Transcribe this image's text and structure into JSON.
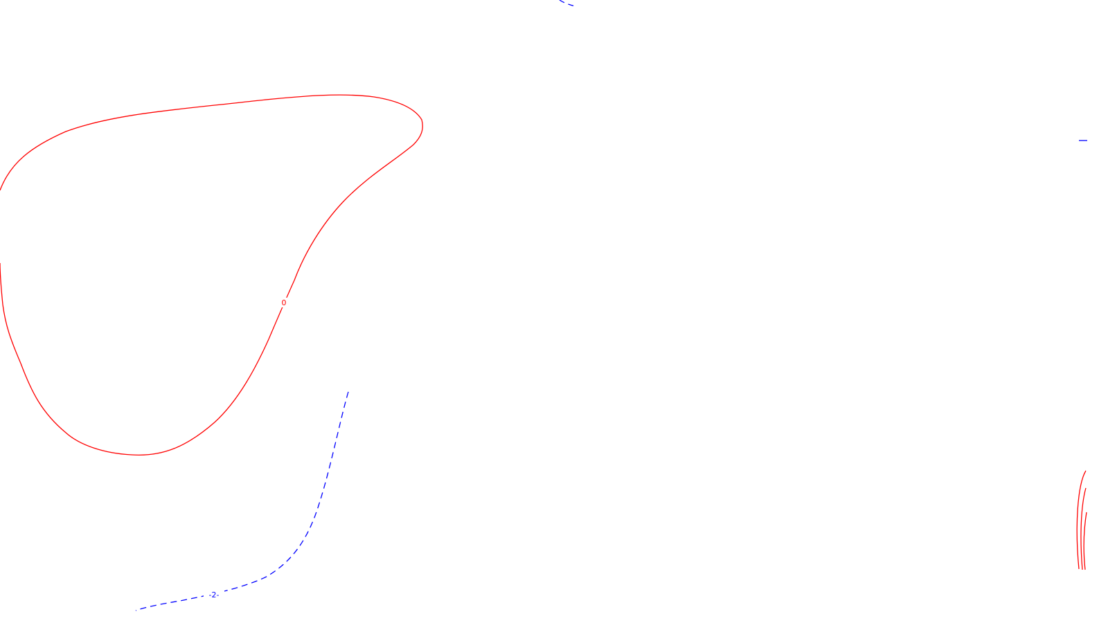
{
  "contours": {
    "solid_color": "#ff0000",
    "dashed_color": "#0000ff",
    "labels": {
      "zero": "0",
      "neg_two": "-2-"
    }
  }
}
